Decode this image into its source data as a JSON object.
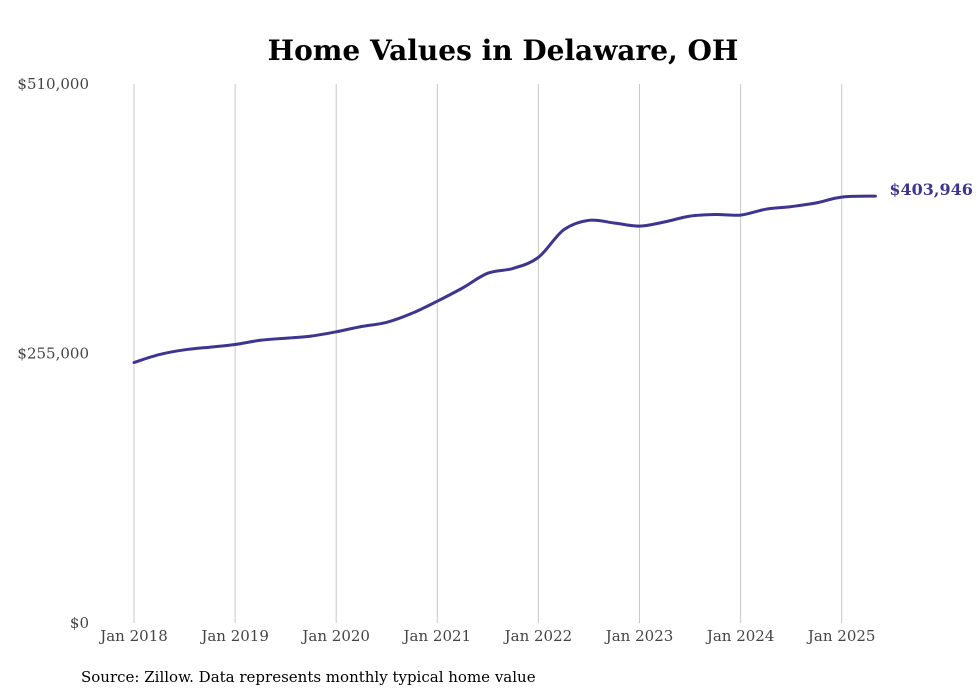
{
  "chart_data": {
    "type": "line",
    "title": "Home Values in Delaware, OH",
    "xlabel": "",
    "ylabel": "",
    "source": "Source: Zillow. Data represents monthly typical home value",
    "ylim": [
      0,
      510000
    ],
    "yticks": [
      {
        "value": 0,
        "label": "$0"
      },
      {
        "value": 255000,
        "label": "$255,000"
      },
      {
        "value": 510000,
        "label": "$510,000"
      }
    ],
    "xticks": [
      {
        "value": "2018-01",
        "label": "Jan 2018"
      },
      {
        "value": "2019-01",
        "label": "Jan 2019"
      },
      {
        "value": "2020-01",
        "label": "Jan 2020"
      },
      {
        "value": "2021-01",
        "label": "Jan 2021"
      },
      {
        "value": "2022-01",
        "label": "Jan 2022"
      },
      {
        "value": "2023-01",
        "label": "Jan 2023"
      },
      {
        "value": "2024-01",
        "label": "Jan 2024"
      },
      {
        "value": "2025-01",
        "label": "Jan 2025"
      }
    ],
    "xlim": [
      "2018-01",
      "2025-05"
    ],
    "grid": "vertical",
    "line_color": "#3d3590",
    "end_label": "$403,946",
    "series": [
      {
        "x": [
          "2018-01",
          "2018-04",
          "2018-07",
          "2018-10",
          "2019-01",
          "2019-04",
          "2019-07",
          "2019-10",
          "2020-01",
          "2020-04",
          "2020-07",
          "2020-10",
          "2021-01",
          "2021-04",
          "2021-07",
          "2021-10",
          "2022-01",
          "2022-04",
          "2022-07",
          "2022-10",
          "2023-01",
          "2023-04",
          "2023-07",
          "2023-10",
          "2024-01",
          "2024-04",
          "2024-07",
          "2024-10",
          "2025-01",
          "2025-05"
        ],
        "values": [
          246500,
          254000,
          258500,
          261000,
          263500,
          267500,
          269500,
          271500,
          275500,
          280500,
          284500,
          293000,
          304500,
          317000,
          331000,
          335500,
          346000,
          372000,
          381000,
          378500,
          375500,
          379500,
          385000,
          386500,
          386000,
          391500,
          394000,
          397500,
          403000,
          403946
        ]
      }
    ]
  }
}
